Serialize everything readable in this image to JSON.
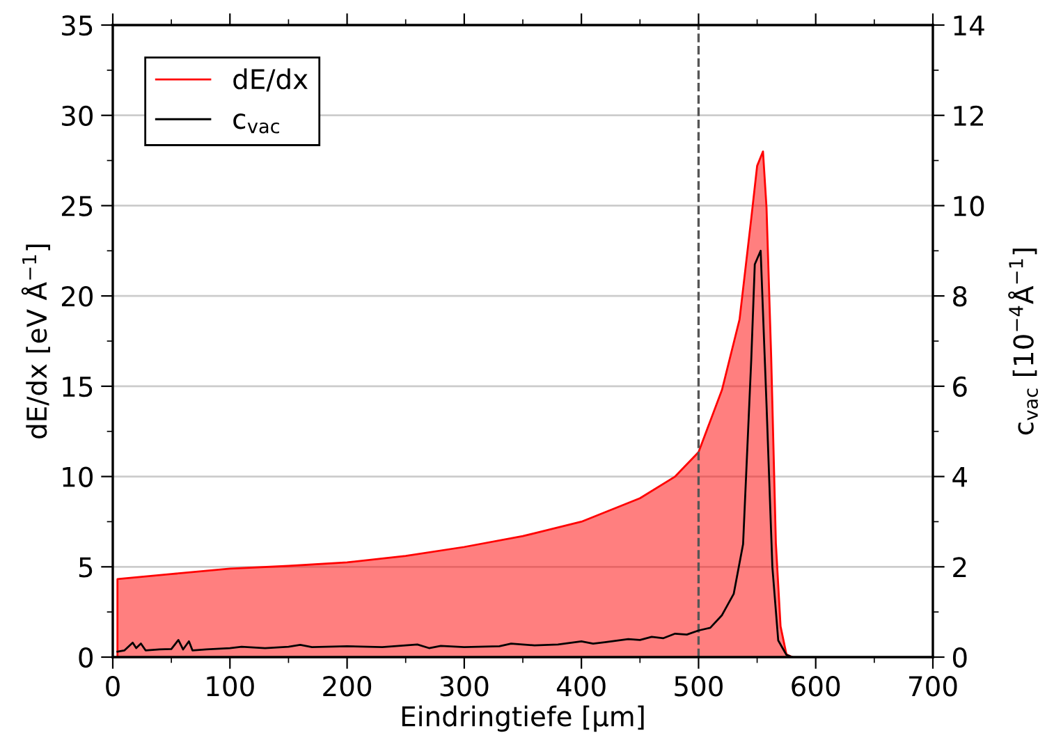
{
  "chart_data": {
    "type": "area",
    "xlabel": "Eindringtiefe [µm]",
    "ylabel": "dE/dx [eV Å$^{−1}$]",
    "y2label": "c$_{vac}$ [10$^{−4}$Å$^{−1}$]",
    "series": [
      {
        "name": "dE/dx",
        "color": "#ff0000",
        "x": [
          4,
          4,
          50,
          100,
          150,
          200,
          250,
          300,
          350,
          400,
          450,
          480,
          500,
          520,
          535,
          545,
          550,
          555,
          558,
          562,
          566,
          570,
          575,
          580
        ],
        "values": [
          0,
          4.32,
          4.6,
          4.9,
          5.05,
          5.25,
          5.6,
          6.1,
          6.7,
          7.5,
          8.8,
          10.0,
          11.35,
          14.8,
          18.7,
          24.3,
          27.2,
          28.0,
          24.9,
          16.6,
          6.3,
          1.7,
          0.15,
          0
        ]
      },
      {
        "name": "c$_{vac}$",
        "type": "line",
        "axis": "y2",
        "color": "#000000",
        "x": [
          4,
          10,
          17,
          20,
          24,
          28,
          40,
          50,
          56,
          60,
          65,
          68,
          80,
          100,
          110,
          130,
          150,
          160,
          170,
          200,
          230,
          260,
          270,
          280,
          300,
          330,
          340,
          360,
          380,
          400,
          410,
          420,
          440,
          450,
          460,
          470,
          480,
          490,
          500,
          510,
          520,
          530,
          538,
          545,
          548,
          553,
          558,
          563,
          568,
          575,
          580
        ],
        "values": [
          0.12,
          0.15,
          0.32,
          0.2,
          0.3,
          0.15,
          0.17,
          0.18,
          0.38,
          0.17,
          0.35,
          0.15,
          0.17,
          0.2,
          0.23,
          0.2,
          0.23,
          0.27,
          0.22,
          0.24,
          0.22,
          0.28,
          0.2,
          0.25,
          0.22,
          0.24,
          0.3,
          0.26,
          0.28,
          0.35,
          0.3,
          0.33,
          0.4,
          0.38,
          0.45,
          0.42,
          0.52,
          0.5,
          0.59,
          0.65,
          0.93,
          1.4,
          2.5,
          6.6,
          8.7,
          9.0,
          5.6,
          2.0,
          0.37,
          0.05,
          0
        ]
      }
    ],
    "xlim": [
      0,
      700
    ],
    "xticks": [
      0,
      100,
      200,
      300,
      400,
      500,
      600,
      700
    ],
    "ylim": [
      0,
      35
    ],
    "yticks": [
      0,
      5,
      10,
      15,
      20,
      25,
      30,
      35
    ],
    "y2lim": [
      0,
      14
    ],
    "y2ticks": [
      0,
      2,
      4,
      6,
      8,
      10,
      12,
      14
    ],
    "ref_lines": [
      {
        "axis": "x",
        "value": 500,
        "color": "#555555",
        "line_style": "dashed"
      }
    ],
    "grid": "y",
    "legend": "top left"
  }
}
